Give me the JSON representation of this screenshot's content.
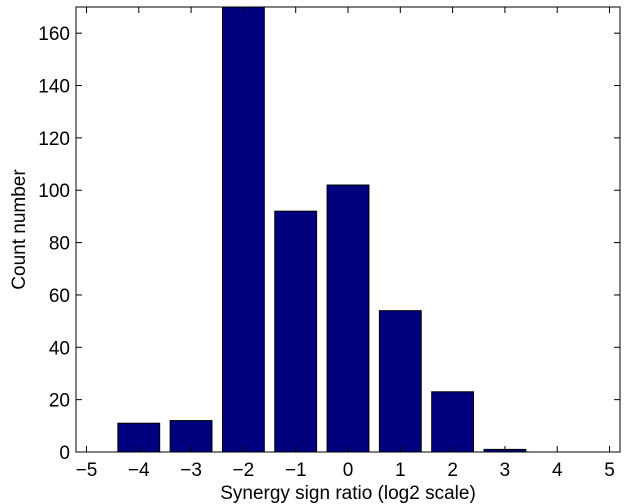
{
  "chart_data": {
    "type": "bar",
    "title": "",
    "xlabel": "Synergy sign ratio (log2 scale)",
    "ylabel": "Count number",
    "xlim": [
      -5.2,
      5.2
    ],
    "ylim": [
      0,
      170
    ],
    "xticks": [
      -5,
      -4,
      -3,
      -2,
      -1,
      0,
      1,
      2,
      3,
      4,
      5
    ],
    "xtick_labels": [
      "−5",
      "−4",
      "−3",
      "−2",
      "−1",
      "0",
      "1",
      "2",
      "3",
      "4",
      "5"
    ],
    "yticks": [
      0,
      20,
      40,
      60,
      80,
      100,
      120,
      140,
      160
    ],
    "ytick_labels": [
      "0",
      "20",
      "40",
      "60",
      "80",
      "100",
      "120",
      "140",
      "160"
    ],
    "x": [
      -5,
      -4,
      -3,
      -2,
      -1,
      0,
      1,
      2,
      3,
      4,
      5
    ],
    "values": [
      0,
      11,
      12,
      170,
      92,
      102,
      54,
      23,
      1,
      0,
      0
    ],
    "bar_color": "#00007f",
    "grid": false,
    "box": true
  }
}
